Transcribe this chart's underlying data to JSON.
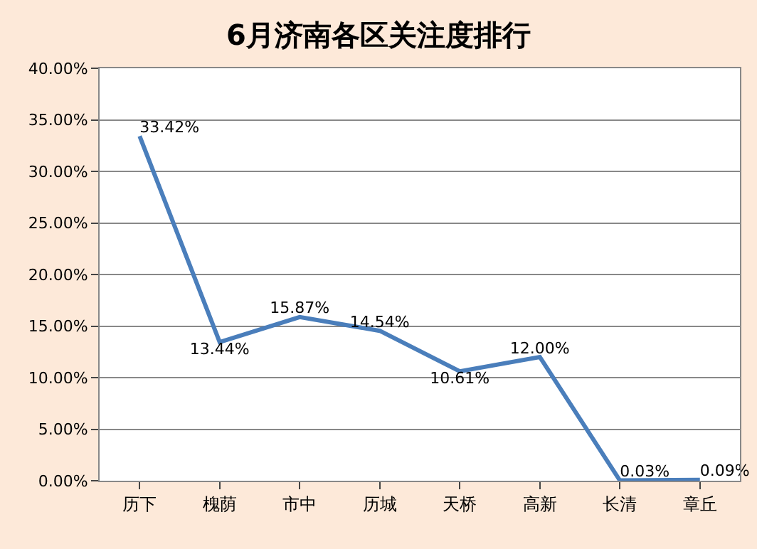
{
  "chart_data": {
    "type": "line",
    "title": "6月济南各区关注度排行",
    "categories": [
      "历下",
      "槐荫",
      "市中",
      "历城",
      "天桥",
      "高新",
      "长清",
      "章丘"
    ],
    "series": [
      {
        "color": "#4a7ebb",
        "values": [
          33.42,
          13.44,
          15.87,
          14.54,
          10.61,
          12.0,
          0.03,
          0.09
        ],
        "value_labels": [
          "33.42%",
          "13.44%",
          "15.87%",
          "14.54%",
          "10.61%",
          "12.00%",
          "0.03%",
          "0.09%"
        ]
      }
    ],
    "ylim": [
      0,
      40
    ],
    "yticks": [
      {
        "value": 0,
        "label": "0.00%"
      },
      {
        "value": 5,
        "label": "5.00%"
      },
      {
        "value": 10,
        "label": "10.00%"
      },
      {
        "value": 15,
        "label": "15.00%"
      },
      {
        "value": 20,
        "label": "20.00%"
      },
      {
        "value": 25,
        "label": "25.00%"
      },
      {
        "value": 30,
        "label": "30.00%"
      },
      {
        "value": 35,
        "label": "35.00%"
      },
      {
        "value": 40,
        "label": "40.00%"
      }
    ],
    "grid": "y",
    "marker": "none",
    "line_style": "solid"
  }
}
